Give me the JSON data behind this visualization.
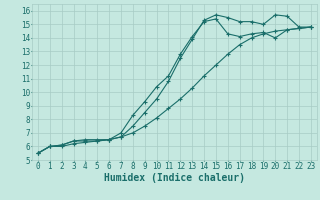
{
  "title": "",
  "xlabel": "Humidex (Indice chaleur)",
  "xlim": [
    -0.5,
    23.5
  ],
  "ylim": [
    5,
    16.5
  ],
  "background_color": "#c5e8e0",
  "grid_color": "#a8ccc5",
  "line_color": "#1a6e6a",
  "x_ticks": [
    0,
    1,
    2,
    3,
    4,
    5,
    6,
    7,
    8,
    9,
    10,
    11,
    12,
    13,
    14,
    15,
    16,
    17,
    18,
    19,
    20,
    21,
    22,
    23
  ],
  "y_ticks": [
    5,
    6,
    7,
    8,
    9,
    10,
    11,
    12,
    13,
    14,
    15,
    16
  ],
  "line1_x": [
    0,
    1,
    2,
    3,
    4,
    5,
    6,
    7,
    8,
    9,
    10,
    11,
    12,
    13,
    14,
    15,
    16,
    17,
    18,
    19,
    20,
    21,
    22,
    23
  ],
  "line1_y": [
    5.5,
    6.0,
    6.1,
    6.4,
    6.5,
    6.5,
    6.5,
    6.7,
    7.5,
    8.5,
    9.5,
    10.8,
    12.5,
    13.9,
    15.3,
    15.7,
    15.5,
    15.2,
    15.2,
    15.0,
    15.7,
    15.6,
    14.8,
    14.8
  ],
  "line2_x": [
    0,
    1,
    2,
    3,
    4,
    5,
    6,
    7,
    8,
    9,
    10,
    11,
    12,
    13,
    14,
    15,
    16,
    17,
    18,
    19,
    20,
    21,
    22,
    23
  ],
  "line2_y": [
    5.5,
    6.0,
    6.1,
    6.4,
    6.4,
    6.4,
    6.5,
    7.0,
    8.3,
    9.3,
    10.4,
    11.2,
    12.8,
    14.1,
    15.2,
    15.4,
    14.3,
    14.1,
    14.3,
    14.4,
    14.0,
    14.6,
    14.7,
    14.8
  ],
  "line3_x": [
    0,
    1,
    2,
    3,
    4,
    5,
    6,
    7,
    8,
    9,
    10,
    11,
    12,
    13,
    14,
    15,
    16,
    17,
    18,
    19,
    20,
    21,
    22,
    23
  ],
  "line3_y": [
    5.5,
    6.0,
    6.0,
    6.2,
    6.3,
    6.4,
    6.5,
    6.7,
    7.0,
    7.5,
    8.1,
    8.8,
    9.5,
    10.3,
    11.2,
    12.0,
    12.8,
    13.5,
    14.0,
    14.3,
    14.5,
    14.6,
    14.7,
    14.8
  ],
  "tick_fontsize": 5.5,
  "xlabel_fontsize": 7.0,
  "marker": "+",
  "marker_size": 3.5,
  "linewidth": 0.8
}
